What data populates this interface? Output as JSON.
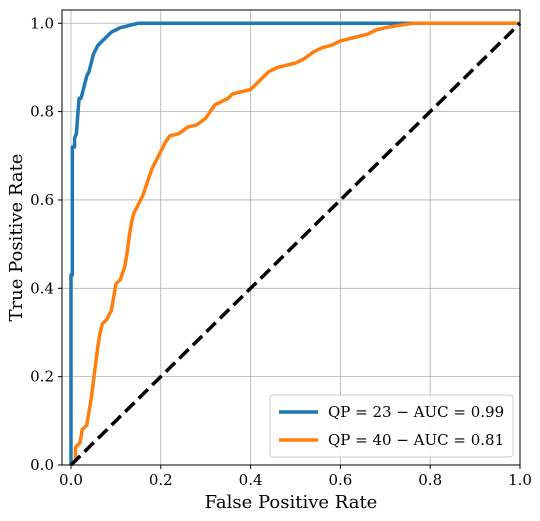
{
  "chart_data": {
    "type": "line",
    "title": "",
    "xlabel": "False Positive Rate",
    "ylabel": "True Positive Rate",
    "xlim": [
      -0.02,
      1.0
    ],
    "ylim": [
      0.0,
      1.03
    ],
    "grid": true,
    "legend_position": "bottom-right",
    "x_ticks": [
      {
        "value": 0.0,
        "label": "0.0"
      },
      {
        "value": 0.2,
        "label": "0.2"
      },
      {
        "value": 0.4,
        "label": "0.4"
      },
      {
        "value": 0.6,
        "label": "0.6"
      },
      {
        "value": 0.8,
        "label": "0.8"
      },
      {
        "value": 1.0,
        "label": "1.0"
      }
    ],
    "y_ticks": [
      {
        "value": 0.0,
        "label": "0.0"
      },
      {
        "value": 0.2,
        "label": "0.2"
      },
      {
        "value": 0.4,
        "label": "0.4"
      },
      {
        "value": 0.6,
        "label": "0.6"
      },
      {
        "value": 0.8,
        "label": "0.8"
      },
      {
        "value": 1.0,
        "label": "1.0"
      }
    ],
    "series": [
      {
        "name": "QP = 23 − AUC = 0.99",
        "color": "#1f77b4",
        "style": "solid",
        "points": [
          [
            0.0,
            0.0
          ],
          [
            0.0,
            0.43
          ],
          [
            0.003,
            0.43
          ],
          [
            0.003,
            0.72
          ],
          [
            0.008,
            0.72
          ],
          [
            0.008,
            0.74
          ],
          [
            0.012,
            0.75
          ],
          [
            0.015,
            0.79
          ],
          [
            0.018,
            0.83
          ],
          [
            0.022,
            0.83
          ],
          [
            0.025,
            0.84
          ],
          [
            0.03,
            0.86
          ],
          [
            0.035,
            0.88
          ],
          [
            0.04,
            0.89
          ],
          [
            0.045,
            0.91
          ],
          [
            0.05,
            0.93
          ],
          [
            0.055,
            0.94
          ],
          [
            0.06,
            0.95
          ],
          [
            0.07,
            0.96
          ],
          [
            0.08,
            0.97
          ],
          [
            0.09,
            0.98
          ],
          [
            0.1,
            0.985
          ],
          [
            0.11,
            0.99
          ],
          [
            0.13,
            0.995
          ],
          [
            0.15,
            1.0
          ],
          [
            0.5,
            1.0
          ],
          [
            0.87,
            1.0
          ],
          [
            1.0,
            1.0
          ]
        ]
      },
      {
        "name": "QP = 40 − AUC = 0.81",
        "color": "#ff7f0e",
        "style": "solid",
        "points": [
          [
            0.0,
            0.0
          ],
          [
            0.01,
            0.01
          ],
          [
            0.01,
            0.04
          ],
          [
            0.02,
            0.05
          ],
          [
            0.025,
            0.08
          ],
          [
            0.035,
            0.09
          ],
          [
            0.04,
            0.12
          ],
          [
            0.045,
            0.15
          ],
          [
            0.05,
            0.19
          ],
          [
            0.055,
            0.23
          ],
          [
            0.06,
            0.27
          ],
          [
            0.065,
            0.3
          ],
          [
            0.07,
            0.32
          ],
          [
            0.08,
            0.33
          ],
          [
            0.09,
            0.35
          ],
          [
            0.095,
            0.38
          ],
          [
            0.1,
            0.41
          ],
          [
            0.11,
            0.42
          ],
          [
            0.12,
            0.45
          ],
          [
            0.125,
            0.48
          ],
          [
            0.13,
            0.52
          ],
          [
            0.135,
            0.55
          ],
          [
            0.14,
            0.57
          ],
          [
            0.15,
            0.59
          ],
          [
            0.16,
            0.61
          ],
          [
            0.17,
            0.64
          ],
          [
            0.18,
            0.67
          ],
          [
            0.19,
            0.69
          ],
          [
            0.2,
            0.71
          ],
          [
            0.21,
            0.73
          ],
          [
            0.22,
            0.745
          ],
          [
            0.24,
            0.75
          ],
          [
            0.26,
            0.765
          ],
          [
            0.28,
            0.77
          ],
          [
            0.3,
            0.785
          ],
          [
            0.31,
            0.8
          ],
          [
            0.32,
            0.815
          ],
          [
            0.33,
            0.82
          ],
          [
            0.35,
            0.83
          ],
          [
            0.36,
            0.84
          ],
          [
            0.38,
            0.845
          ],
          [
            0.4,
            0.85
          ],
          [
            0.41,
            0.86
          ],
          [
            0.42,
            0.87
          ],
          [
            0.43,
            0.88
          ],
          [
            0.44,
            0.89
          ],
          [
            0.46,
            0.9
          ],
          [
            0.48,
            0.905
          ],
          [
            0.5,
            0.91
          ],
          [
            0.52,
            0.92
          ],
          [
            0.54,
            0.935
          ],
          [
            0.56,
            0.945
          ],
          [
            0.58,
            0.95
          ],
          [
            0.6,
            0.96
          ],
          [
            0.62,
            0.965
          ],
          [
            0.64,
            0.97
          ],
          [
            0.66,
            0.975
          ],
          [
            0.68,
            0.985
          ],
          [
            0.7,
            0.99
          ],
          [
            0.73,
            0.995
          ],
          [
            0.76,
            1.0
          ],
          [
            0.85,
            1.0
          ],
          [
            1.0,
            1.0
          ]
        ]
      },
      {
        "name": "",
        "color": "#000000",
        "style": "dashed",
        "points": [
          [
            0.0,
            0.0
          ],
          [
            1.0,
            1.0
          ]
        ]
      }
    ]
  }
}
